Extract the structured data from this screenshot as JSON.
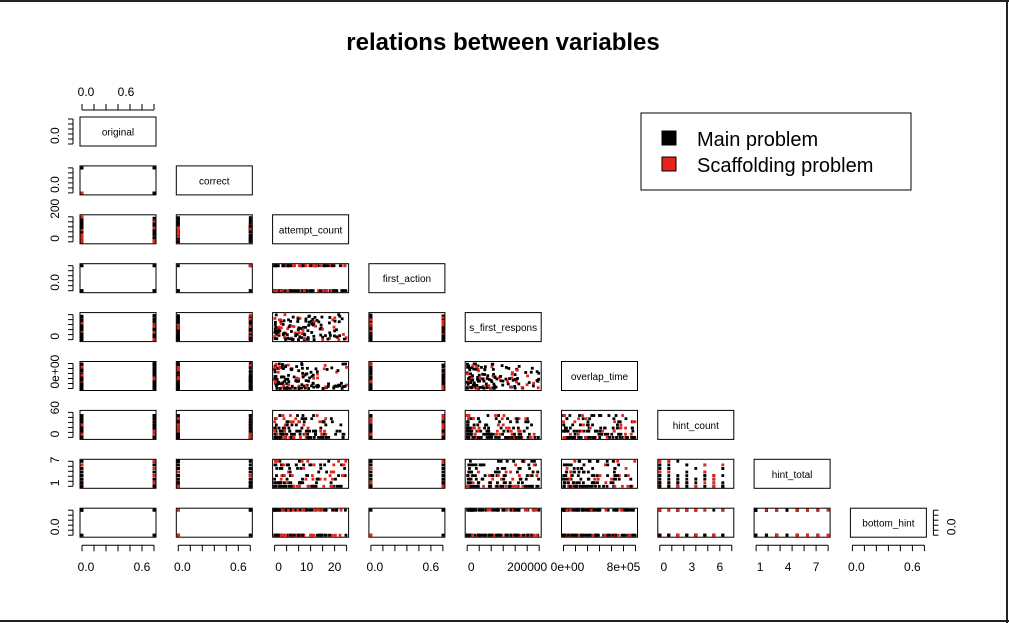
{
  "chart_data": {
    "type": "scatter",
    "title": "relations between variables",
    "variables": [
      "original",
      "correct",
      "attempt_count",
      "first_action",
      "s_first_respons",
      "overlap_time",
      "hint_count",
      "hint_total",
      "bottom_hint"
    ],
    "series": [
      {
        "name": "Main problem",
        "color": "#000000"
      },
      {
        "name": "Scaffolding problem",
        "color": "#e8231b"
      }
    ],
    "legend_position": "top-right",
    "axes": {
      "original": {
        "ticks": [
          "0.0",
          "0.6"
        ],
        "range": [
          0,
          1
        ]
      },
      "correct": {
        "ticks": [
          "0.0",
          "0.6"
        ],
        "range": [
          0,
          1
        ]
      },
      "attempt_count": {
        "ticks": [
          "0",
          "10",
          "20"
        ],
        "range": [
          0,
          20
        ]
      },
      "first_action": {
        "ticks": [
          "0.0",
          "0.6"
        ],
        "range": [
          0,
          1
        ]
      },
      "s_first_respons": {
        "ticks": [
          "0",
          "200000"
        ],
        "range": [
          0,
          300000
        ]
      },
      "overlap_time": {
        "ticks": [
          "0e+00",
          "8e+05"
        ],
        "range": [
          0,
          1000000
        ]
      },
      "hint_count": {
        "ticks": [
          "0",
          "3",
          "6"
        ],
        "range": [
          0,
          8
        ]
      },
      "hint_total": {
        "ticks": [
          "1",
          "4",
          "7"
        ],
        "range": [
          1,
          8
        ]
      },
      "bottom_hint": {
        "ticks": [
          "0.0",
          "0.6"
        ],
        "range": [
          0,
          1
        ]
      }
    },
    "left_axis_labels": [
      {
        "row": 0,
        "ticks": [
          "0.0"
        ]
      },
      {
        "row": 1,
        "ticks": [
          "0.0"
        ]
      },
      {
        "row": 2,
        "ticks": [
          "0",
          "200"
        ]
      },
      {
        "row": 3,
        "ticks": [
          "0.0"
        ]
      },
      {
        "row": 4,
        "ticks": [
          "0"
        ]
      },
      {
        "row": 5,
        "ticks": [
          "0e+00"
        ]
      },
      {
        "row": 6,
        "ticks": [
          "0",
          "60"
        ]
      },
      {
        "row": 7,
        "ticks": [
          "1",
          "7"
        ]
      },
      {
        "row": 8,
        "ticks": [
          "0.0"
        ]
      }
    ],
    "right_axis_labels": [
      {
        "row": 8,
        "ticks": [
          "0.0"
        ]
      }
    ]
  }
}
